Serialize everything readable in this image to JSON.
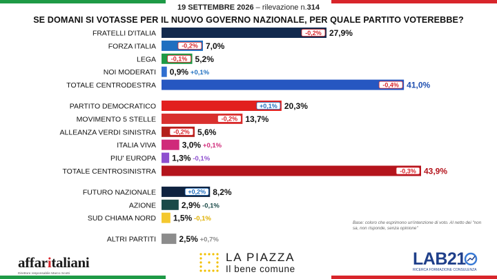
{
  "header": {
    "date": "19 SETTEMBRE 2026",
    "survey": "– rilevazione n.",
    "survey_number": "314",
    "title": "SE DOMANI SI VOTASSE PER IL NUOVO GOVERNO NAZIONALE, PER QUALE PARTITO VOTEREBBE?"
  },
  "colors": {
    "fdi": "#122a4e",
    "fi": "#1f6fc0",
    "lega": "#1e9a46",
    "nm": "#2f6fd0",
    "cdx_total": "#2657c1",
    "pd": "#e2201e",
    "m5s": "#d9302e",
    "avs": "#b3201b",
    "iv": "#d02a7a",
    "pe": "#8e4fcf",
    "csx_total": "#b4141c",
    "fn": "#0f2340",
    "azione": "#1a4a48",
    "scn": "#f4c82f",
    "altri": "#8c8c8c",
    "change_pos": "#1f6fc0",
    "change_neg": "#d8252b"
  },
  "chart_data": {
    "type": "bar",
    "orientation": "horizontal",
    "title": "SE DOMANI SI VOTASSE PER IL NUOVO GOVERNO NAZIONALE, PER QUALE PARTITO VOTEREBBE?",
    "xlim": [
      0,
      43.9
    ],
    "unit": "%",
    "rows": [
      {
        "label": "FRATELLI D'ITALIA",
        "value": 27.9,
        "value_label": "27,9%",
        "change": "-0,2%",
        "change_pos": "inside",
        "color": "#122a4e",
        "group": 1
      },
      {
        "label": "FORZA ITALIA",
        "value": 7.0,
        "value_label": "7,0%",
        "change": "-0,2%",
        "change_pos": "inside",
        "color": "#1f6fc0",
        "group": 1
      },
      {
        "label": "LEGA",
        "value": 5.2,
        "value_label": "5,2%",
        "change": "-0,1%",
        "change_pos": "inside",
        "color": "#1e9a46",
        "group": 1
      },
      {
        "label": "NOI MODERATI",
        "value": 0.9,
        "value_label": "0,9%",
        "change": "+0,1%",
        "change_pos": "after",
        "color": "#2f6fd0",
        "group": 1
      },
      {
        "label": "TOTALE CENTRODESTRA",
        "value": 41.0,
        "value_label": "41,0%",
        "change": "-0,4%",
        "change_pos": "inside",
        "color": "#2657c1",
        "group": 1,
        "total": true
      },
      {
        "label": "PARTITO DEMOCRATICO",
        "value": 20.3,
        "value_label": "20,3%",
        "change": "+0,1%",
        "change_pos": "inside",
        "color": "#e2201e",
        "group": 2
      },
      {
        "label": "MOVIMENTO 5 STELLE",
        "value": 13.7,
        "value_label": "13,7%",
        "change": "-0,2%",
        "change_pos": "inside",
        "color": "#d9302e",
        "group": 2,
        "outlined": true
      },
      {
        "label": "ALLEANZA VERDI SINISTRA",
        "value": 5.6,
        "value_label": "5,6%",
        "change": "-0,2%",
        "change_pos": "inside",
        "color": "#b3201b",
        "group": 2
      },
      {
        "label": "ITALIA VIVA",
        "value": 3.0,
        "value_label": "3,0%",
        "change": "+0,1%",
        "change_pos": "after",
        "color": "#d02a7a",
        "group": 2
      },
      {
        "label": "PIU' EUROPA",
        "value": 1.3,
        "value_label": "1,3%",
        "change": "-0,1%",
        "change_pos": "after",
        "color": "#8e4fcf",
        "group": 2
      },
      {
        "label": "TOTALE CENTROSINISTRA",
        "value": 43.9,
        "value_label": "43,9%",
        "change": "-0,3%",
        "change_pos": "inside",
        "color": "#b4141c",
        "group": 2,
        "total": true
      },
      {
        "label": "FUTURO NAZIONALE",
        "value": 8.2,
        "value_label": "8,2%",
        "change": "+0,2%",
        "change_pos": "inside",
        "color": "#0f2340",
        "group": 3
      },
      {
        "label": "AZIONE",
        "value": 2.9,
        "value_label": "2,9%",
        "change": "-0,1%",
        "change_pos": "after",
        "color": "#1a4a48",
        "group": 3
      },
      {
        "label": "SUD CHIAMA NORD",
        "value": 1.5,
        "value_label": "1,5%",
        "change": "-0,1%",
        "change_pos": "after",
        "color": "#f4c82f",
        "group": 3
      },
      {
        "label": "ALTRI PARTITI",
        "value": 2.5,
        "value_label": "2,5%",
        "change": "+0,7%",
        "change_pos": "after",
        "color": "#8c8c8c",
        "group": 4
      }
    ]
  },
  "footnote": "Base: coloro che esprimono un'intenzione di voto. Al netto dei \"non sa, non risponde, senza opinione\"",
  "logos": {
    "affari_part1": "affar",
    "affari_part2": "i",
    "affari_part3": "taliani",
    "affari_tag": "Direttore responsabile Marco Scotti",
    "piazza_title": "LA PIAZZA",
    "piazza_sub": "Il bene comune",
    "lab_word": "LAB21",
    "lab_tag": "RICERCA FORMAZIONE CONSULENZA"
  }
}
